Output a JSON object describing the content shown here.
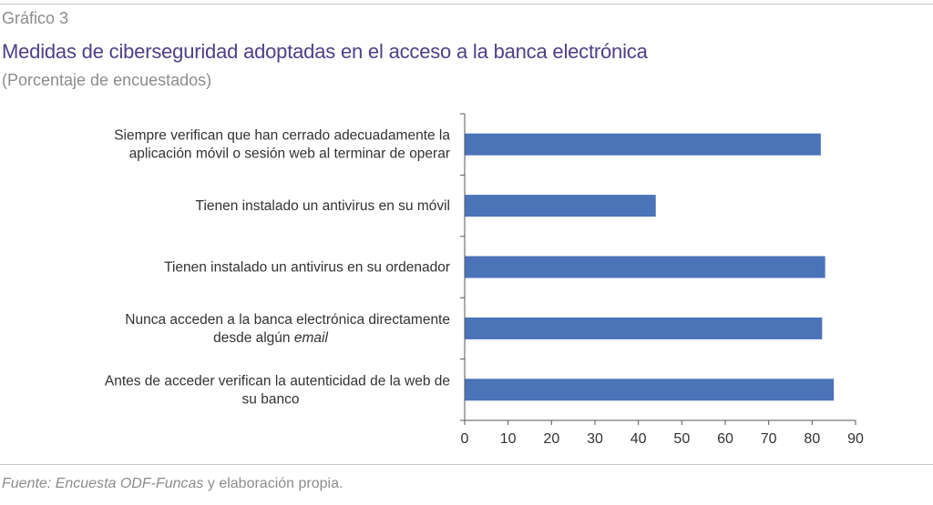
{
  "header": {
    "figure_number": "Gráfico 3",
    "title": "Medidas de ciberseguridad adoptadas en el acceso a la banca electrónica",
    "subtitle": "(Porcentaje de encuestados)"
  },
  "footer": {
    "source_italic": "Fuente: Encuesta ODF-Funcas",
    "source_rest": " y elaboración propia."
  },
  "chart_data": {
    "type": "bar",
    "orientation": "horizontal",
    "categories": [
      {
        "lines": [
          "Siempre verifican que han cerrado adecuadamente la",
          "aplicación móvil o sesión web al terminar de operar"
        ],
        "italic_word": ""
      },
      {
        "lines": [
          "Tienen instalado un antivirus en su móvil"
        ],
        "italic_word": ""
      },
      {
        "lines": [
          "Tienen instalado un antivirus en su ordenador"
        ],
        "italic_word": ""
      },
      {
        "lines": [
          "Nunca acceden a la banca electrónica directamente",
          "desde algún "
        ],
        "italic_word": "email"
      },
      {
        "lines": [
          "Antes de acceder verifican la autenticidad de la web de",
          "su banco"
        ],
        "italic_word": ""
      }
    ],
    "values": [
      82,
      44,
      83,
      82.3,
      85
    ],
    "xlim": [
      0,
      90
    ],
    "xticks": [
      "0",
      "10",
      "20",
      "30",
      "40",
      "50",
      "60",
      "70",
      "80",
      "90"
    ],
    "bar_color": "#4a73b8",
    "axis_color": "#555555",
    "grid": false,
    "legend": "none"
  }
}
